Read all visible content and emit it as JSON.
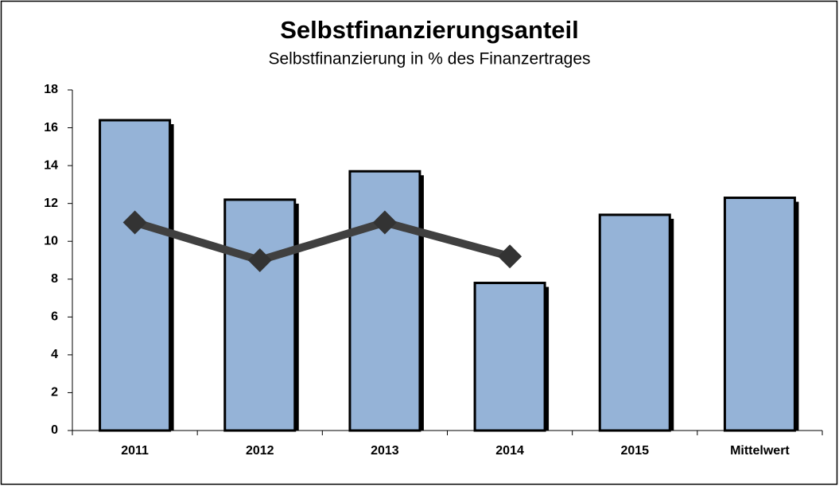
{
  "chart_data": {
    "type": "bar",
    "title": "Selbstfinanzierungsanteil",
    "subtitle": "Selbstfinanzierung in % des Finanzertrages",
    "categories": [
      "2011",
      "2012",
      "2013",
      "2014",
      "2015",
      "Mittelwert"
    ],
    "series": [
      {
        "type": "bar",
        "color": "#95b3d7",
        "values": [
          16.4,
          12.2,
          13.7,
          7.8,
          11.4,
          12.3
        ]
      },
      {
        "type": "line",
        "color": "#404040",
        "values": [
          11.0,
          9.0,
          11.0,
          9.2,
          null,
          null
        ]
      }
    ],
    "ylim": [
      0,
      18
    ],
    "yticks": [
      0,
      2,
      4,
      6,
      8,
      10,
      12,
      14,
      16,
      18
    ],
    "grid": false
  }
}
